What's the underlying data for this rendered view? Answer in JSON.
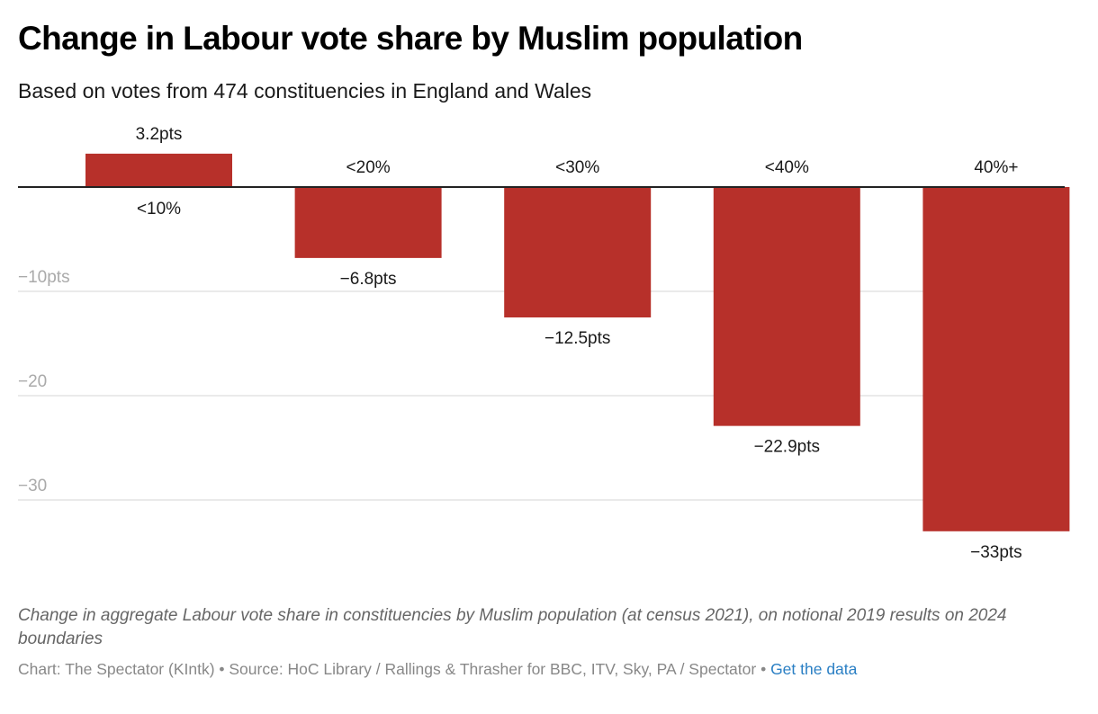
{
  "header": {
    "title": "Change in Labour vote share by Muslim population",
    "subtitle": "Based on votes from 474 constituencies in England and Wales"
  },
  "footer": {
    "caption": "Change in aggregate Labour vote share in constituencies by Muslim population (at census 2021), on notional 2019 results on 2024 boundaries",
    "source_text": "Chart: The Spectator (KIntk) • Source: HoC Library / Rallings & Thrasher for BBC, ITV, Sky, PA / Spectator • ",
    "get_data_label": "Get the data"
  },
  "colors": {
    "bar": "#b7302a",
    "gridline": "#e3e3e3",
    "zero_line": "#222222",
    "link": "#2a7fc4"
  },
  "chart_data": {
    "type": "bar",
    "title": "Change in Labour vote share by Muslim population",
    "subtitle": "Based on votes from 474 constituencies in England and Wales",
    "xlabel": "",
    "ylabel": "",
    "categories": [
      "<10%",
      "<20%",
      "<30%",
      "<40%",
      "40%+"
    ],
    "values": [
      3.2,
      -6.8,
      -12.5,
      -22.9,
      -33
    ],
    "value_labels": [
      "3.2pts",
      "−6.8pts",
      "−12.5pts",
      "−22.9pts",
      "−33pts"
    ],
    "ylim": [
      -36,
      5
    ],
    "yticks": [
      -10,
      -20,
      -30
    ],
    "ytick_labels": [
      "−10pts",
      "−20",
      "−30"
    ],
    "grid": true,
    "legend": "none"
  }
}
